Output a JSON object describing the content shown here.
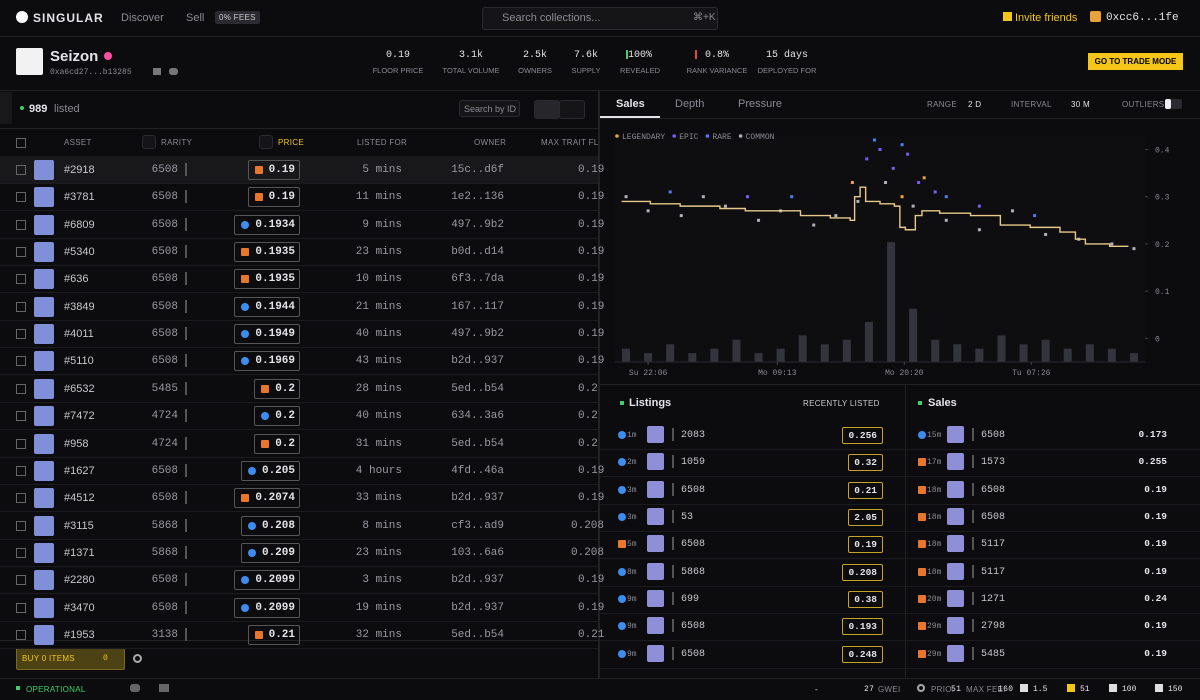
{
  "nav": {
    "logo": "SINGULAR",
    "links": [
      "Discover",
      "Sell"
    ],
    "fee_badge": "0% FEES",
    "search_placeholder": "Search collections...",
    "shortcut": "⌘+K",
    "invite": "Invite friends",
    "wallet": "0xcc6...1fe"
  },
  "collection": {
    "name": "Seizon",
    "address": "0xa6cd27...b13285",
    "trade_button": "GO TO TRADE MODE",
    "stats": [
      {
        "value": "0.19",
        "label": "FLOOR PRICE"
      },
      {
        "value": "3.1k",
        "label": "TOTAL VOLUME"
      },
      {
        "value": "2.5k",
        "label": "OWNERS"
      },
      {
        "value": "7.6k",
        "label": "SUPPLY"
      },
      {
        "value": "100%",
        "label": "REVEALED"
      },
      {
        "value": "0.8%",
        "label": "RANK VARIANCE"
      },
      {
        "value": "15 days",
        "label": "DEPLOYED FOR"
      }
    ]
  },
  "listed_panel": {
    "count": "989",
    "count_label": "listed",
    "search_placeholder": "Search by ID",
    "columns": [
      "ASSET",
      "RARITY",
      "PRICE",
      "LISTED FOR",
      "OWNER",
      "MAX TRAIT FL"
    ],
    "rows": [
      {
        "id": "#2918",
        "rarity": "6508",
        "price": "0.19",
        "listed_for": "5 mins",
        "owner": "15c..d6f",
        "max_trait": "0.19",
        "source": "blur"
      },
      {
        "id": "#3781",
        "rarity": "6508",
        "price": "0.19",
        "listed_for": "11 mins",
        "owner": "1e2..136",
        "max_trait": "0.19",
        "source": "blur"
      },
      {
        "id": "#6809",
        "rarity": "6508",
        "price": "0.1934",
        "listed_for": "9 mins",
        "owner": "497..9b2",
        "max_trait": "0.19",
        "source": "opensea"
      },
      {
        "id": "#5340",
        "rarity": "6508",
        "price": "0.1935",
        "listed_for": "23 mins",
        "owner": "b0d..d14",
        "max_trait": "0.19",
        "source": "blur"
      },
      {
        "id": "#636",
        "rarity": "6508",
        "price": "0.1935",
        "listed_for": "10 mins",
        "owner": "6f3..7da",
        "max_trait": "0.19",
        "source": "blur"
      },
      {
        "id": "#3849",
        "rarity": "6508",
        "price": "0.1944",
        "listed_for": "21 mins",
        "owner": "167..117",
        "max_trait": "0.19",
        "source": "opensea"
      },
      {
        "id": "#4011",
        "rarity": "6508",
        "price": "0.1949",
        "listed_for": "40 mins",
        "owner": "497..9b2",
        "max_trait": "0.19",
        "source": "opensea"
      },
      {
        "id": "#5110",
        "rarity": "6508",
        "price": "0.1969",
        "listed_for": "43 mins",
        "owner": "b2d..937",
        "max_trait": "0.19",
        "source": "opensea"
      },
      {
        "id": "#6532",
        "rarity": "5485",
        "price": "0.2",
        "listed_for": "28 mins",
        "owner": "5ed..b54",
        "max_trait": "0.2",
        "source": "blur"
      },
      {
        "id": "#7472",
        "rarity": "4724",
        "price": "0.2",
        "listed_for": "40 mins",
        "owner": "634..3a6",
        "max_trait": "0.2",
        "source": "opensea"
      },
      {
        "id": "#958",
        "rarity": "4724",
        "price": "0.2",
        "listed_for": "31 mins",
        "owner": "5ed..b54",
        "max_trait": "0.2",
        "source": "blur"
      },
      {
        "id": "#1627",
        "rarity": "6508",
        "price": "0.205",
        "listed_for": "4 hours",
        "owner": "4fd..46a",
        "max_trait": "0.19",
        "source": "opensea"
      },
      {
        "id": "#4512",
        "rarity": "6508",
        "price": "0.2074",
        "listed_for": "33 mins",
        "owner": "b2d..937",
        "max_trait": "0.19",
        "source": "blur"
      },
      {
        "id": "#3115",
        "rarity": "5868",
        "price": "0.208",
        "listed_for": "8 mins",
        "owner": "cf3..ad9",
        "max_trait": "0.208",
        "source": "opensea"
      },
      {
        "id": "#1371",
        "rarity": "5868",
        "price": "0.209",
        "listed_for": "23 mins",
        "owner": "103..6a6",
        "max_trait": "0.208",
        "source": "opensea"
      },
      {
        "id": "#2280",
        "rarity": "6508",
        "price": "0.2099",
        "listed_for": "3 mins",
        "owner": "b2d..937",
        "max_trait": "0.19",
        "source": "opensea"
      },
      {
        "id": "#3470",
        "rarity": "6508",
        "price": "0.2099",
        "listed_for": "19 mins",
        "owner": "b2d..937",
        "max_trait": "0.19",
        "source": "opensea"
      },
      {
        "id": "#1953",
        "rarity": "3138",
        "price": "0.21",
        "listed_for": "32 mins",
        "owner": "5ed..b54",
        "max_trait": "0.21",
        "source": "blur"
      }
    ],
    "buy_button": "BUY 0 ITEMS",
    "cart_total": "0"
  },
  "chart_panel": {
    "tabs": [
      "Sales",
      "Depth",
      "Pressure"
    ],
    "range_label": "RANGE",
    "range_value": "2 D",
    "interval_label": "INTERVAL",
    "interval_value": "30 M",
    "outliers_label": "OUTLIERS"
  },
  "chart_data": {
    "type": "scatter",
    "xlim": [
      0,
      48
    ],
    "ylim": [
      -0.05,
      0.42
    ],
    "xticks": [
      {
        "value": 3,
        "label": "Su 22:06"
      },
      {
        "value": 14.7,
        "label": "Mo 09:13"
      },
      {
        "value": 26.2,
        "label": "Mo 20:20"
      },
      {
        "value": 37.7,
        "label": "Tu 07:26"
      }
    ],
    "yticks": [
      0,
      0.1,
      0.2,
      0.3,
      0.4
    ],
    "series": [
      {
        "name": "LEGENDARY",
        "color": "#e8a33d",
        "x": [
          21.5,
          26,
          28
        ],
        "values": [
          0.33,
          0.3,
          0.34
        ]
      },
      {
        "name": "EPIC",
        "color": "#7b5cf0",
        "x": [
          12,
          22.8,
          24,
          25.2,
          26.5,
          27.5,
          29,
          33
        ],
        "values": [
          0.3,
          0.38,
          0.4,
          0.36,
          0.39,
          0.33,
          0.31,
          0.28
        ]
      },
      {
        "name": "RARE",
        "color": "#4d7cf3",
        "x": [
          5,
          16,
          23.5,
          26,
          30,
          38
        ],
        "values": [
          0.31,
          0.3,
          0.42,
          0.41,
          0.3,
          0.26
        ]
      },
      {
        "name": "COMMON",
        "color": "#b0b0b8",
        "x": [
          1,
          3,
          6,
          8,
          10,
          13,
          15,
          18,
          20,
          22,
          24.5,
          27,
          30,
          33,
          36,
          39,
          42,
          45,
          47
        ],
        "values": [
          0.3,
          0.27,
          0.26,
          0.3,
          0.28,
          0.25,
          0.27,
          0.24,
          0.26,
          0.29,
          0.33,
          0.28,
          0.25,
          0.23,
          0.27,
          0.22,
          0.21,
          0.2,
          0.19
        ]
      }
    ],
    "floor_line": {
      "color": "#e8c98a",
      "x": [
        0.6,
        3.2,
        5.9,
        7.7,
        9.5,
        11.8,
        14,
        16.8,
        19.5,
        21.3,
        21.7,
        22.2,
        22.7,
        24,
        25.3,
        25.8,
        26.3,
        27.2,
        27.8,
        29.4,
        32.2,
        34.9,
        37.6,
        40.3,
        41.7,
        42.6,
        44.8,
        46.5
      ],
      "values": [
        0.29,
        0.285,
        0.28,
        0.28,
        0.275,
        0.27,
        0.27,
        0.26,
        0.255,
        0.25,
        0.3,
        0.32,
        0.29,
        0.285,
        0.28,
        0.235,
        0.23,
        0.26,
        0.27,
        0.265,
        0.26,
        0.24,
        0.235,
        0.225,
        0.21,
        0.2,
        0.195,
        0.195
      ]
    },
    "volume": {
      "color": "#34343c",
      "axis": "y2",
      "x": [
        1,
        3,
        5,
        7,
        9,
        11,
        13,
        15,
        17,
        19,
        21,
        23,
        25,
        27,
        29,
        31,
        33,
        35,
        37,
        39,
        41,
        43,
        45,
        47
      ],
      "values": [
        3,
        2,
        4,
        2,
        3,
        5,
        2,
        3,
        6,
        4,
        5,
        9,
        27,
        12,
        5,
        4,
        3,
        6,
        4,
        5,
        3,
        4,
        3,
        2
      ]
    },
    "y2lim": [
      0,
      50
    ]
  },
  "listings": {
    "title": "Listings",
    "sort": "RECENTLY LISTED",
    "rows": [
      {
        "time": "1m",
        "rarity": "2083",
        "price": "0.256",
        "source": "opensea"
      },
      {
        "time": "2m",
        "rarity": "1059",
        "price": "0.32",
        "source": "opensea"
      },
      {
        "time": "3m",
        "rarity": "6508",
        "price": "0.21",
        "source": "opensea"
      },
      {
        "time": "3m",
        "rarity": "53",
        "price": "2.05",
        "source": "opensea"
      },
      {
        "time": "5m",
        "rarity": "6508",
        "price": "0.19",
        "source": "blur"
      },
      {
        "time": "8m",
        "rarity": "5868",
        "price": "0.208",
        "source": "opensea"
      },
      {
        "time": "9m",
        "rarity": "699",
        "price": "0.38",
        "source": "opensea"
      },
      {
        "time": "9m",
        "rarity": "6508",
        "price": "0.193",
        "source": "opensea"
      },
      {
        "time": "9m",
        "rarity": "6508",
        "price": "0.248",
        "source": "opensea"
      }
    ]
  },
  "sales": {
    "title": "Sales",
    "rows": [
      {
        "time": "15m",
        "rarity": "6508",
        "price": "0.173",
        "source": "opensea"
      },
      {
        "time": "17m",
        "rarity": "1573",
        "price": "0.255",
        "source": "blur"
      },
      {
        "time": "18m",
        "rarity": "6508",
        "price": "0.19",
        "source": "blur"
      },
      {
        "time": "18m",
        "rarity": "6508",
        "price": "0.19",
        "source": "blur"
      },
      {
        "time": "18m",
        "rarity": "5117",
        "price": "0.19",
        "source": "blur"
      },
      {
        "time": "18m",
        "rarity": "5117",
        "price": "0.19",
        "source": "blur"
      },
      {
        "time": "20m",
        "rarity": "1271",
        "price": "0.24",
        "source": "blur"
      },
      {
        "time": "29m",
        "rarity": "2798",
        "price": "0.19",
        "source": "blur"
      },
      {
        "time": "29m",
        "rarity": "5485",
        "price": "0.19",
        "source": "blur"
      }
    ]
  },
  "footer": {
    "status": "OPERATIONAL",
    "network": "-",
    "gas": "27",
    "gas_unit": "GWEI",
    "prio_label": "PRIO:",
    "prio": "51",
    "max_fee_label": "MAX FEE:",
    "max_fee": "160",
    "counts": [
      "1.5",
      "51",
      "100",
      "150"
    ]
  }
}
